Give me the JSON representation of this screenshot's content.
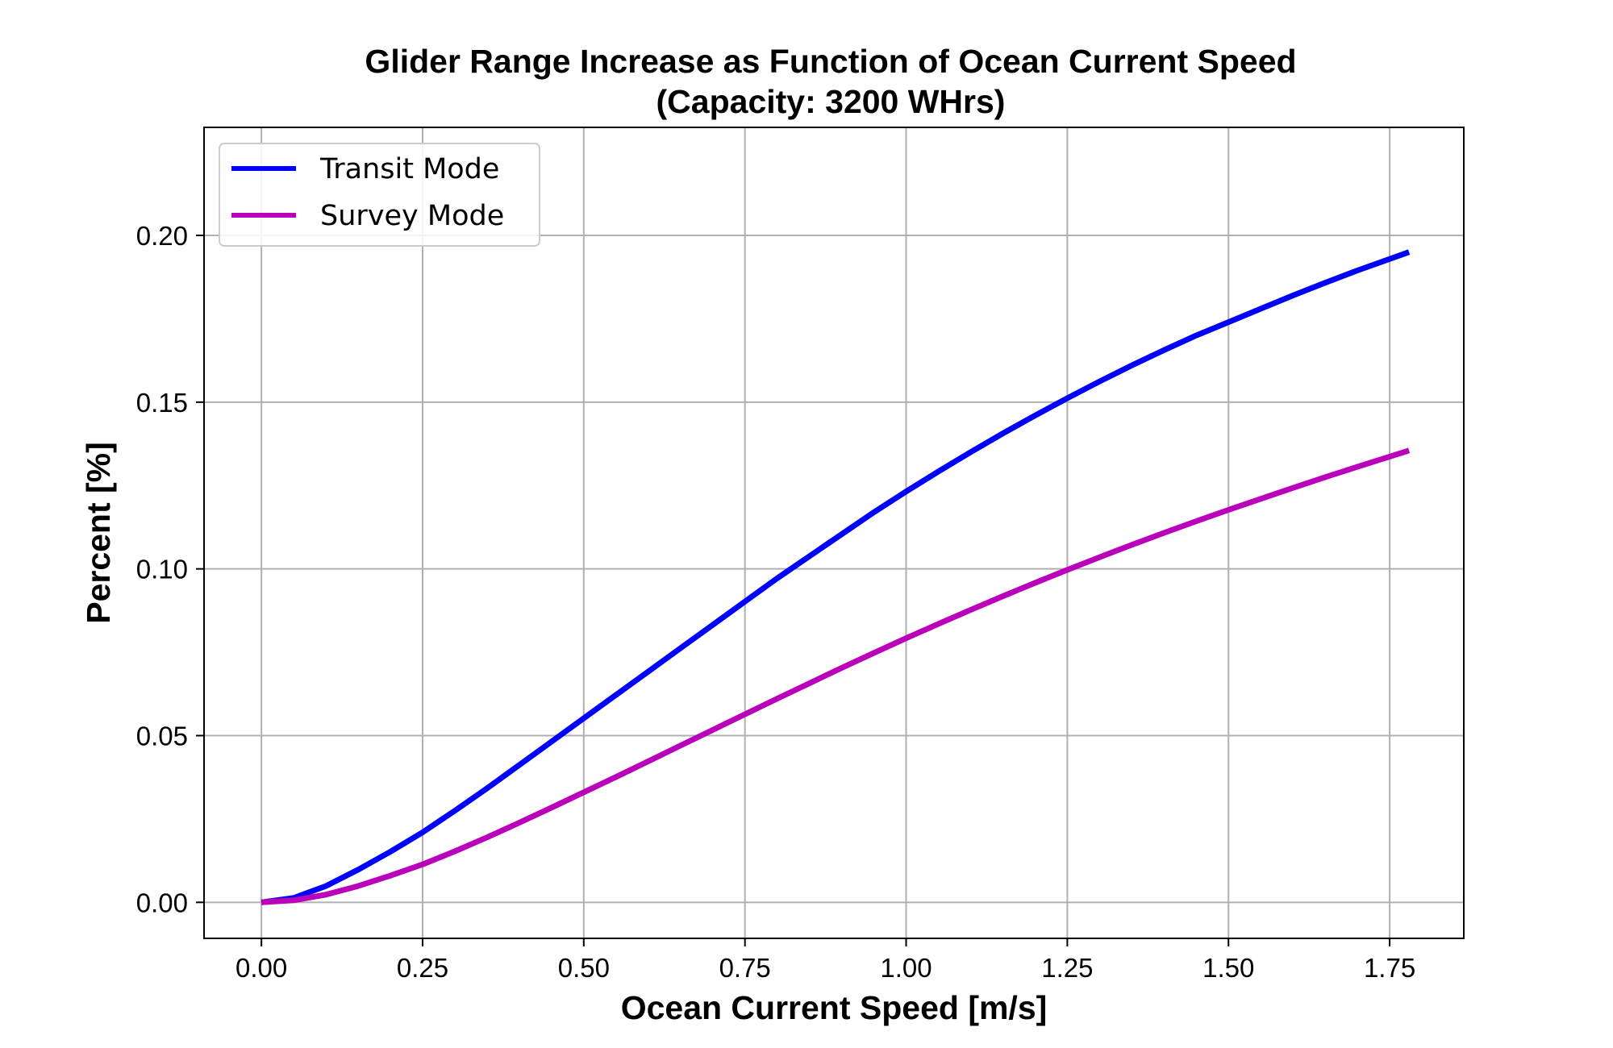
{
  "chart_data": {
    "type": "line",
    "title": "Glider Range Increase as Function of Ocean Current Speed",
    "subtitle": "(Capacity: 3200 WHrs)",
    "xlabel": "Ocean Current Speed [m/s]",
    "ylabel": "Percent [%]",
    "xlim": [
      -0.089,
      1.865
    ],
    "ylim": [
      -0.0108,
      0.2324
    ],
    "xticks": [
      0.0,
      0.25,
      0.5,
      0.75,
      1.0,
      1.25,
      1.5,
      1.75
    ],
    "xtick_labels": [
      "0.00",
      "0.25",
      "0.50",
      "0.75",
      "1.00",
      "1.25",
      "1.50",
      "1.75"
    ],
    "yticks": [
      0.0,
      0.05,
      0.1,
      0.15,
      0.2
    ],
    "ytick_labels": [
      "0.00",
      "0.05",
      "0.10",
      "0.15",
      "0.20"
    ],
    "grid": true,
    "legend_position": "top-left",
    "series": [
      {
        "name": "Transit Mode",
        "color": "#0000ff",
        "x": [
          0.0,
          0.05,
          0.1,
          0.15,
          0.2,
          0.25,
          0.3,
          0.35,
          0.4,
          0.45,
          0.5,
          0.55,
          0.6,
          0.65,
          0.7,
          0.75,
          0.8,
          0.85,
          0.9,
          0.95,
          1.0,
          1.05,
          1.1,
          1.15,
          1.2,
          1.25,
          1.3,
          1.35,
          1.4,
          1.45,
          1.5,
          1.55,
          1.6,
          1.65,
          1.7,
          1.78
        ],
        "y": [
          0.0,
          0.0013,
          0.0049,
          0.0098,
          0.0152,
          0.021,
          0.0275,
          0.0342,
          0.0412,
          0.0482,
          0.0552,
          0.0622,
          0.0692,
          0.0762,
          0.0832,
          0.0902,
          0.0972,
          0.1038,
          0.1104,
          0.117,
          0.1232,
          0.1292,
          0.135,
          0.1406,
          0.146,
          0.1512,
          0.1562,
          0.161,
          0.1656,
          0.17,
          0.174,
          0.178,
          0.182,
          0.1858,
          0.1895,
          0.195
        ]
      },
      {
        "name": "Survey Mode",
        "color": "#bb00bb",
        "x": [
          0.0,
          0.05,
          0.1,
          0.15,
          0.2,
          0.25,
          0.3,
          0.35,
          0.4,
          0.45,
          0.5,
          0.55,
          0.6,
          0.65,
          0.7,
          0.75,
          0.8,
          0.85,
          0.9,
          0.95,
          1.0,
          1.05,
          1.1,
          1.15,
          1.2,
          1.25,
          1.3,
          1.35,
          1.4,
          1.45,
          1.5,
          1.55,
          1.6,
          1.65,
          1.7,
          1.78
        ],
        "y": [
          0.0,
          0.0006,
          0.0023,
          0.0049,
          0.008,
          0.0114,
          0.0153,
          0.0195,
          0.0239,
          0.0284,
          0.033,
          0.0376,
          0.0423,
          0.047,
          0.0517,
          0.0564,
          0.0611,
          0.0657,
          0.0703,
          0.0748,
          0.0792,
          0.0835,
          0.0877,
          0.0918,
          0.0958,
          0.0997,
          0.1035,
          0.1072,
          0.1108,
          0.1143,
          0.1177,
          0.121,
          0.1243,
          0.1275,
          0.1306,
          0.1355
        ]
      }
    ]
  }
}
